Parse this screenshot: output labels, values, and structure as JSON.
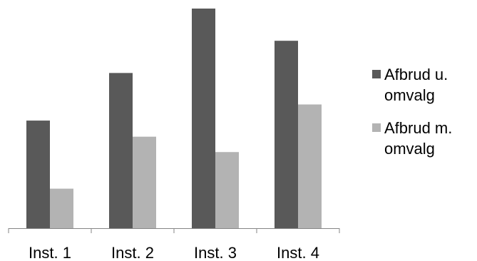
{
  "chart_data": {
    "type": "bar",
    "categories": [
      "Inst. 1",
      "Inst. 2",
      "Inst. 3",
      "Inst. 4"
    ],
    "series": [
      {
        "name": "Afbrud u. omvalg",
        "values": [
          147,
          212,
          300,
          256
        ],
        "color": "#595959"
      },
      {
        "name": "Afbrud m. omvalg",
        "values": [
          54,
          125,
          104,
          169
        ],
        "color": "#b3b3b3"
      }
    ],
    "ylim": [
      0,
      300
    ],
    "grid": false,
    "legend_position": "right",
    "title": "",
    "xlabel": "",
    "ylabel": ""
  }
}
